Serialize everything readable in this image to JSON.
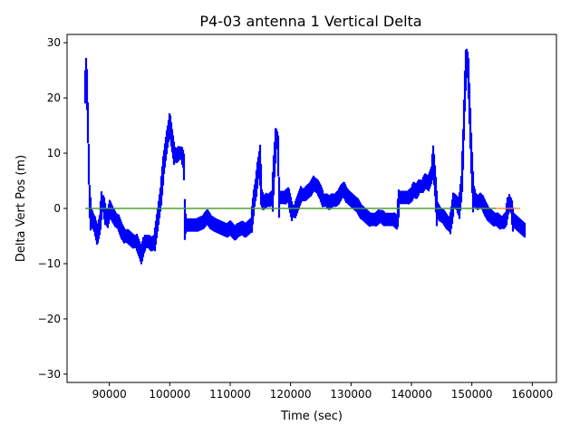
{
  "chart_data": {
    "type": "line",
    "title": "P4-03 antenna 1 Vertical Delta",
    "xlabel": "Time (sec)",
    "ylabel": "Delta Vert Pos (m)",
    "xlim": [
      83000,
      164000
    ],
    "ylim": [
      -31.5,
      31.5
    ],
    "x_ticks": [
      90000,
      100000,
      110000,
      120000,
      130000,
      140000,
      150000,
      160000
    ],
    "x_tick_labels": [
      "90000",
      "100000",
      "110000",
      "120000",
      "130000",
      "140000",
      "150000",
      "160000"
    ],
    "y_ticks": [
      -30,
      -20,
      -10,
      0,
      10,
      20,
      30
    ],
    "y_tick_labels": [
      "−30",
      "−20",
      "−10",
      "0",
      "10",
      "20",
      "30"
    ],
    "grid": false,
    "series": [
      {
        "color": "#0000ff",
        "style": "dense vertical markers",
        "points": [
          [
            86000,
            22
          ],
          [
            86200,
            25
          ],
          [
            86400,
            18
          ],
          [
            86600,
            8
          ],
          [
            86700,
            2
          ],
          [
            86900,
            -1
          ],
          [
            87200,
            -2
          ],
          [
            87600,
            -3
          ],
          [
            88000,
            -5
          ],
          [
            88400,
            -3
          ],
          [
            88700,
            0.5
          ],
          [
            89000,
            1
          ],
          [
            89300,
            -1
          ],
          [
            89700,
            -2
          ],
          [
            90100,
            0
          ],
          [
            90500,
            -1
          ],
          [
            91000,
            -2
          ],
          [
            91500,
            -2.5
          ],
          [
            92000,
            -4
          ],
          [
            92500,
            -5
          ],
          [
            93000,
            -5
          ],
          [
            93500,
            -5.5
          ],
          [
            94000,
            -6
          ],
          [
            94500,
            -6
          ],
          [
            95000,
            -7.5
          ],
          [
            95300,
            -8.5
          ],
          [
            95600,
            -7
          ],
          [
            96000,
            -6
          ],
          [
            96500,
            -6
          ],
          [
            97000,
            -6.5
          ],
          [
            97500,
            -6
          ],
          [
            98000,
            -2
          ],
          [
            98500,
            2
          ],
          [
            99000,
            8
          ],
          [
            99500,
            12
          ],
          [
            99800,
            14
          ],
          [
            100000,
            15.5
          ],
          [
            100300,
            13
          ],
          [
            100700,
            10
          ],
          [
            101100,
            9.5
          ],
          [
            101500,
            10
          ],
          [
            101900,
            10
          ],
          [
            102200,
            9
          ],
          [
            102400,
            7
          ],
          [
            102500,
            -2
          ],
          [
            102700,
            -3
          ],
          [
            103500,
            -3
          ],
          [
            104500,
            -3
          ],
          [
            105500,
            -2.5
          ],
          [
            106200,
            -1.5
          ],
          [
            106800,
            -2.5
          ],
          [
            107500,
            -3
          ],
          [
            108500,
            -3.5
          ],
          [
            109500,
            -4
          ],
          [
            110000,
            -3.5
          ],
          [
            110800,
            -4.5
          ],
          [
            111200,
            -4
          ],
          [
            112000,
            -3.5
          ],
          [
            112500,
            -4
          ],
          [
            113000,
            -3.5
          ],
          [
            113500,
            -3
          ],
          [
            114000,
            2
          ],
          [
            114300,
            4
          ],
          [
            114600,
            7
          ],
          [
            114900,
            9
          ],
          [
            115200,
            2
          ],
          [
            115500,
            1
          ],
          [
            116000,
            1.5
          ],
          [
            116500,
            1.5
          ],
          [
            117000,
            2
          ],
          [
            117300,
            8
          ],
          [
            117600,
            13
          ],
          [
            117900,
            12
          ],
          [
            118100,
            2
          ],
          [
            118600,
            2
          ],
          [
            119100,
            2
          ],
          [
            119600,
            2.5
          ],
          [
            120200,
            -0.5
          ],
          [
            120700,
            -0.5
          ],
          [
            121200,
            1
          ],
          [
            121700,
            2.5
          ],
          [
            122300,
            2.5
          ],
          [
            122800,
            3
          ],
          [
            123300,
            3.5
          ],
          [
            123800,
            4.5
          ],
          [
            124400,
            4
          ],
          [
            124900,
            3
          ],
          [
            125400,
            1.5
          ],
          [
            125900,
            1.5
          ],
          [
            126400,
            1
          ],
          [
            126900,
            1.5
          ],
          [
            127400,
            1.5
          ],
          [
            127900,
            2
          ],
          [
            128400,
            3
          ],
          [
            128800,
            3.5
          ],
          [
            129200,
            2.5
          ],
          [
            129600,
            2
          ],
          [
            130100,
            1.5
          ],
          [
            130600,
            1
          ],
          [
            131100,
            0.5
          ],
          [
            131600,
            -0.5
          ],
          [
            132100,
            -1
          ],
          [
            132600,
            -1.5
          ],
          [
            133100,
            -2
          ],
          [
            133600,
            -2
          ],
          [
            134100,
            -2
          ],
          [
            134600,
            -1.5
          ],
          [
            135100,
            -1.5
          ],
          [
            135600,
            -2
          ],
          [
            136100,
            -2
          ],
          [
            136600,
            -2
          ],
          [
            137100,
            -2
          ],
          [
            137600,
            -2.5
          ],
          [
            138000,
            2
          ],
          [
            138500,
            2
          ],
          [
            139000,
            2
          ],
          [
            139500,
            2
          ],
          [
            140000,
            2.5
          ],
          [
            140400,
            3.5
          ],
          [
            140800,
            3
          ],
          [
            141300,
            4
          ],
          [
            141800,
            4
          ],
          [
            142300,
            5
          ],
          [
            142800,
            4.5
          ],
          [
            143300,
            6
          ],
          [
            143600,
            9
          ],
          [
            143900,
            5
          ],
          [
            144200,
            0
          ],
          [
            144700,
            -1
          ],
          [
            145300,
            -1.5
          ],
          [
            145900,
            -2.5
          ],
          [
            146400,
            -3
          ],
          [
            146700,
            -1
          ],
          [
            147000,
            1.5
          ],
          [
            147500,
            1
          ],
          [
            147900,
            0
          ],
          [
            148300,
            4
          ],
          [
            148600,
            12
          ],
          [
            148800,
            20
          ],
          [
            149000,
            25
          ],
          [
            149200,
            27
          ],
          [
            149400,
            25
          ],
          [
            149600,
            19
          ],
          [
            149900,
            10
          ],
          [
            150200,
            3
          ],
          [
            150600,
            1.5
          ],
          [
            151000,
            1
          ],
          [
            151400,
            1.5
          ],
          [
            151800,
            1
          ],
          [
            152200,
            0
          ],
          [
            152700,
            -1
          ],
          [
            153200,
            -1.5
          ],
          [
            153700,
            -2
          ],
          [
            154200,
            -2
          ],
          [
            154700,
            -2.5
          ],
          [
            155200,
            -2.5
          ],
          [
            155600,
            -2
          ],
          [
            155900,
            0
          ],
          [
            156200,
            1
          ],
          [
            156500,
            0.5
          ],
          [
            156800,
            -2
          ],
          [
            157300,
            -2.5
          ],
          [
            157800,
            -3
          ],
          [
            158300,
            -3.5
          ],
          [
            158800,
            -4
          ]
        ]
      },
      {
        "color": "#ff7f0e",
        "x": [
          86000,
          158000
        ],
        "values": [
          0,
          0
        ]
      },
      {
        "color": "#2ca02c",
        "x": [
          86000,
          154000
        ],
        "values": [
          0,
          0
        ]
      }
    ]
  }
}
